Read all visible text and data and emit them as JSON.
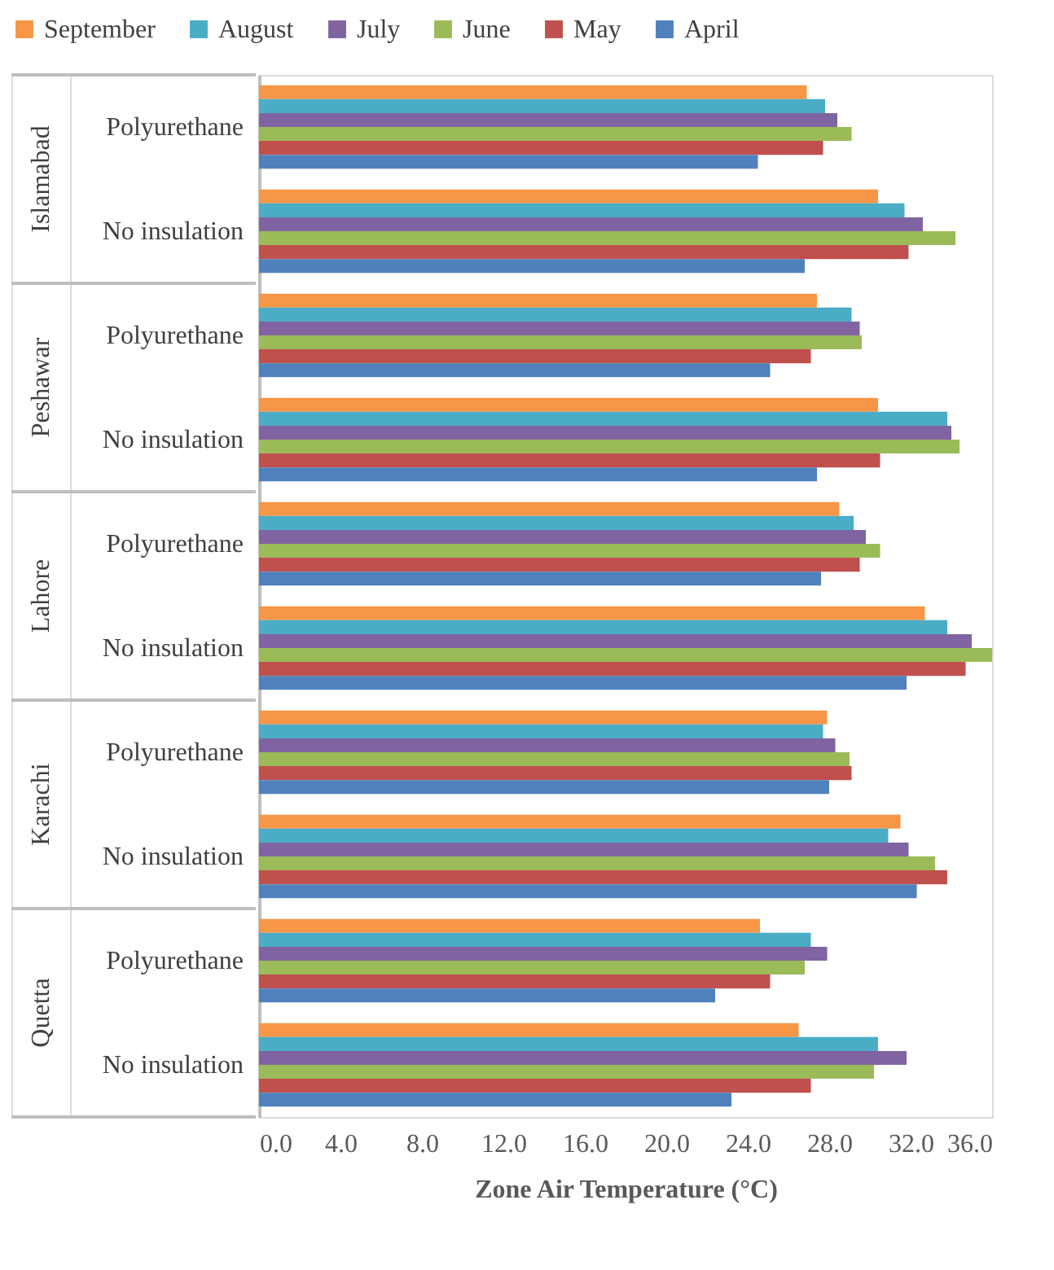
{
  "chart_data": {
    "type": "bar",
    "orientation": "horizontal",
    "categories": [
      "Polyurethane",
      "No insulation",
      "Polyurethane",
      "No insulation",
      "Polyurethane",
      "No insulation",
      "Polyurethane",
      "No insulation",
      "Polyurethane",
      "No insulation"
    ],
    "annotations": [
      "Islamabad",
      "Peshawar",
      "Lahore",
      "Karachi",
      "Quetta"
    ],
    "xlabel": "Zone Air Temperature (°C)",
    "xlim": [
      0,
      36
    ],
    "xticks": [
      {
        "value": 0,
        "label": "0.0"
      },
      {
        "value": 4,
        "label": "4.0"
      },
      {
        "value": 8,
        "label": "8.0"
      },
      {
        "value": 12,
        "label": "12.0"
      },
      {
        "value": 16,
        "label": "16.0"
      },
      {
        "value": 20,
        "label": "20.0"
      },
      {
        "value": 24,
        "label": "24.0"
      },
      {
        "value": 28,
        "label": "28.0"
      },
      {
        "value": 32,
        "label": "32.0"
      },
      {
        "value": 36,
        "label": "36.0"
      }
    ],
    "legend": "top",
    "grid": false,
    "series": [
      {
        "name": "September",
        "color": "#f79646",
        "values": [
          26.9,
          30.4,
          27.4,
          30.4,
          28.5,
          32.7,
          27.9,
          31.5,
          24.6,
          26.5
        ]
      },
      {
        "name": "August",
        "color": "#4bacc6",
        "values": [
          27.8,
          31.7,
          29.1,
          33.8,
          29.2,
          33.8,
          27.7,
          30.9,
          27.1,
          30.4
        ]
      },
      {
        "name": "July",
        "color": "#8064a2",
        "values": [
          28.4,
          32.6,
          29.5,
          34.0,
          29.8,
          35.0,
          28.3,
          31.9,
          27.9,
          31.8
        ]
      },
      {
        "name": "June",
        "color": "#9bbb59",
        "values": [
          29.1,
          34.2,
          29.6,
          34.4,
          30.5,
          36.0,
          29.0,
          33.2,
          26.8,
          30.2
        ]
      },
      {
        "name": "May",
        "color": "#c0504d",
        "values": [
          27.7,
          31.9,
          27.1,
          30.5,
          29.5,
          34.7,
          29.1,
          33.8,
          25.1,
          27.1
        ]
      },
      {
        "name": "April",
        "color": "#4f81bd",
        "values": [
          24.5,
          26.8,
          25.1,
          27.4,
          27.6,
          31.8,
          28.0,
          32.3,
          22.4,
          23.2
        ]
      }
    ]
  }
}
